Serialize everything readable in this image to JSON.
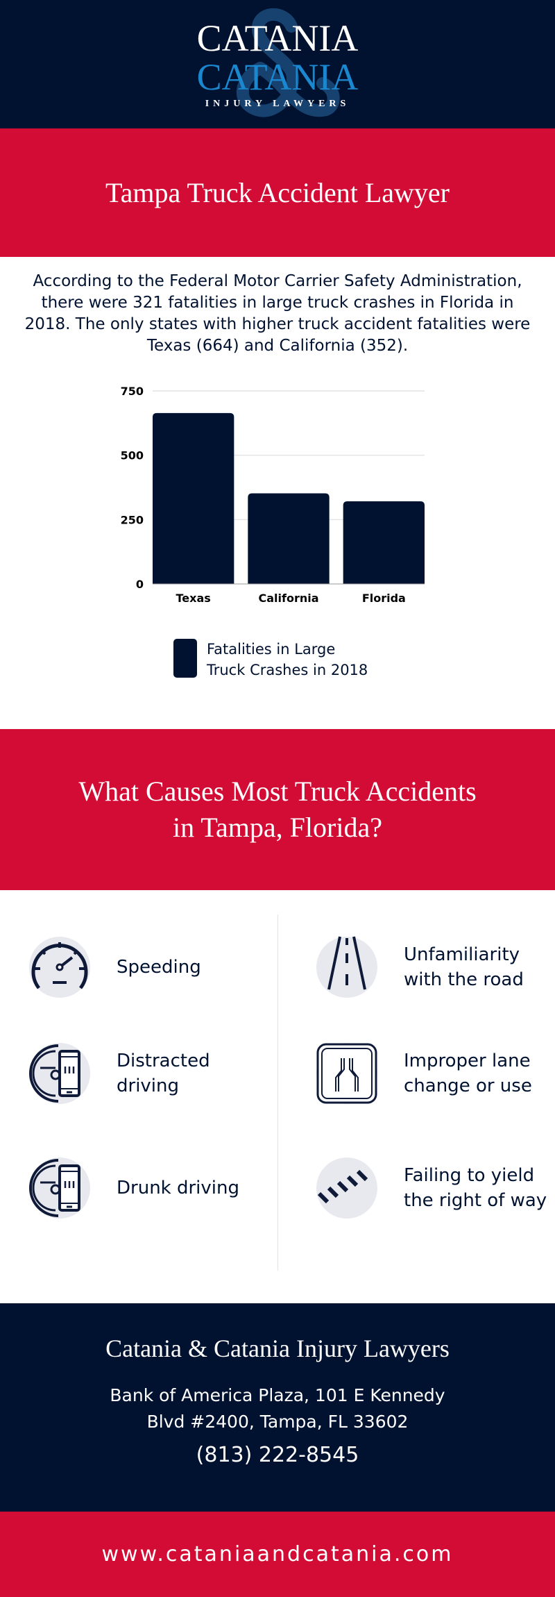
{
  "header": {
    "logo_line1": "CATANIA",
    "logo_line2": "CATANIA",
    "logo_tagline": "INJURY LAWYERS",
    "logo_ampersand": "&"
  },
  "band1": {
    "title": "Tampa Truck Accident Lawyer"
  },
  "intro": {
    "text": "According to the Federal Motor Carrier Safety Administration, there were 321 fatalities in large truck crashes in Florida in 2018. The only states with higher truck accident fatalities were Texas (664) and California (352)."
  },
  "chart_data": {
    "type": "bar",
    "categories": [
      "Texas",
      "California",
      "Florida"
    ],
    "series": [
      {
        "name": "Fatalities in Large Truck Crashes in 2018",
        "values": [
          664,
          352,
          321
        ]
      }
    ],
    "yticks": [
      "0",
      "250",
      "500",
      "750"
    ],
    "ylim": [
      0,
      750
    ],
    "grid": true,
    "legend_placement": "bottom",
    "legend_lines": [
      "Fatalities in Large",
      "Truck Crashes in 2018"
    ],
    "color": "#001230"
  },
  "band2": {
    "title_line1": "What Causes Most Truck Accidents",
    "title_line2": "in Tampa, Florida?"
  },
  "causes": [
    {
      "label": "Speeding",
      "icon": "speedometer-icon"
    },
    {
      "label": "Distracted driving",
      "icon": "steering-wheel-phone-icon"
    },
    {
      "label": "Drunk driving",
      "icon": "steering-wheel-phone-icon"
    },
    {
      "label": "Unfamiliarity with the road",
      "icon": "road-icon"
    },
    {
      "label": "Improper lane change or use",
      "icon": "lane-merge-sign-icon"
    },
    {
      "label": "Failing to yield the right of way",
      "icon": "crosswalk-icon"
    }
  ],
  "footer": {
    "name": "Catania & Catania Injury Lawyers",
    "address_line1": "Bank of America Plaza, 101 E Kennedy",
    "address_line2": "Blvd #2400, Tampa, FL 33602",
    "phone": "(813) 222-8545"
  },
  "band3": {
    "website": "www.cataniaandcatania.com"
  },
  "colors": {
    "navy": "#001230",
    "red": "#d30c35",
    "logo_blue": "#1a87cf",
    "icon_bg": "#e8e9ef"
  }
}
